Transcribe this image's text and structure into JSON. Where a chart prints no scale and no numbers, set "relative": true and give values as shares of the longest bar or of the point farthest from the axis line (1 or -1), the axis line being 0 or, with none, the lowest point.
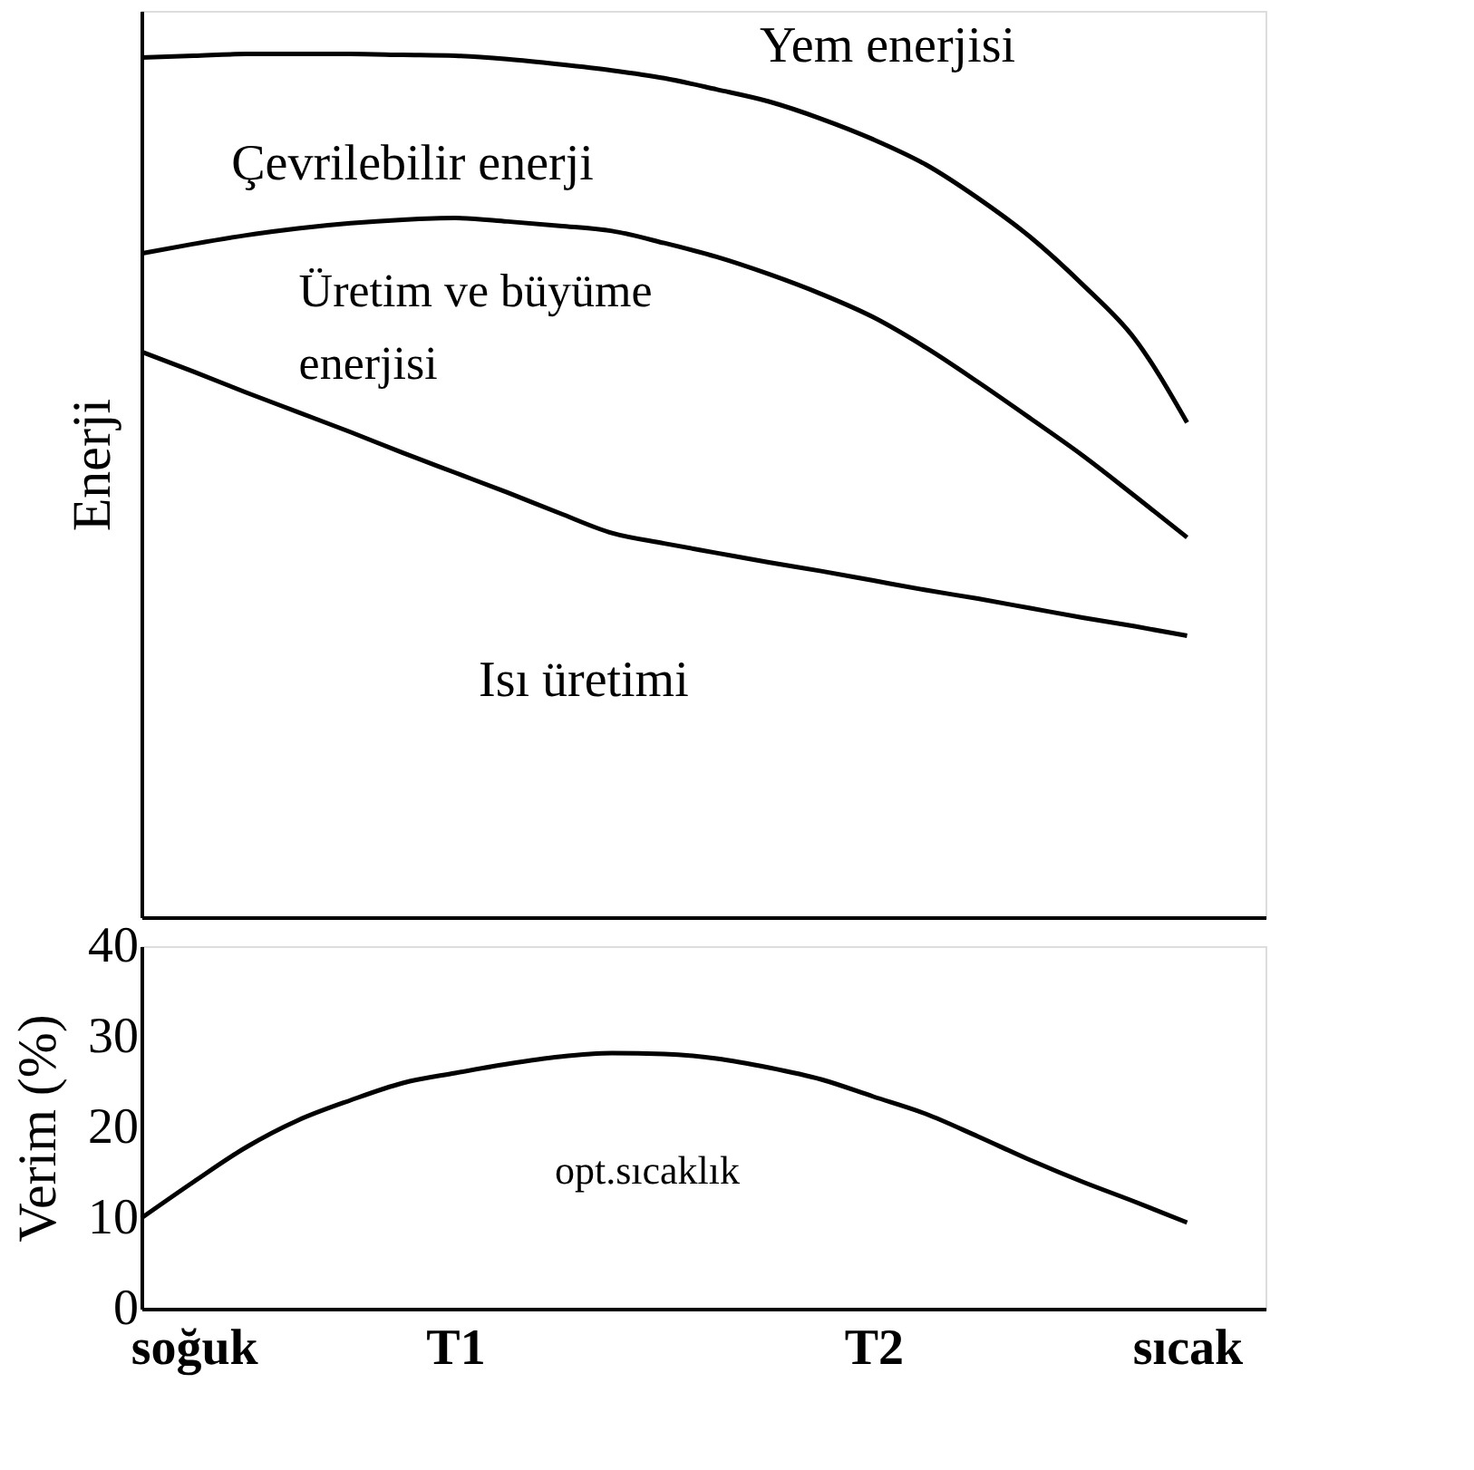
{
  "chart_data": [
    {
      "type": "line",
      "relative": true,
      "ylabel": "Enerji",
      "tick_labels": false,
      "categories": [
        null,
        null,
        null,
        null,
        null,
        null,
        null,
        null,
        null,
        null,
        null,
        null,
        null,
        null,
        null,
        null,
        null,
        null,
        null,
        null,
        null
      ],
      "annotations": [
        "Üretim ve büyüme\nenerjisi"
      ],
      "series": [
        {
          "name": "Yem enerjisi",
          "color": "#000000",
          "values": [
            0.996,
            0.998,
            1.0,
            1.0,
            1.0,
            0.999,
            0.998,
            0.994,
            0.988,
            0.981,
            0.972,
            0.959,
            0.945,
            0.925,
            0.901,
            0.872,
            0.833,
            0.788,
            0.733,
            0.67,
            0.573
          ]
        },
        {
          "name": "Çevrilebilir enerji",
          "color": "#000000",
          "values": [
            0.769,
            0.78,
            0.79,
            0.798,
            0.804,
            0.808,
            0.81,
            0.806,
            0.801,
            0.795,
            0.781,
            0.765,
            0.745,
            0.722,
            0.695,
            0.66,
            0.62,
            0.578,
            0.535,
            0.488,
            0.44
          ]
        },
        {
          "name": "Isı üretimi",
          "color": "#000000",
          "values": [
            0.655,
            0.632,
            0.608,
            0.585,
            0.562,
            0.538,
            0.515,
            0.492,
            0.468,
            0.445,
            0.433,
            0.422,
            0.411,
            0.401,
            0.39,
            0.379,
            0.369,
            0.358,
            0.347,
            0.337,
            0.326
          ]
        }
      ]
    },
    {
      "type": "line",
      "ylabel": "Verim (%)",
      "ylim": [
        0,
        40
      ],
      "yticks": [
        0,
        10,
        20,
        30,
        40
      ],
      "categories": [
        null,
        "soğuk",
        null,
        null,
        null,
        null,
        "T1",
        null,
        null,
        null,
        null,
        null,
        null,
        null,
        "T2",
        null,
        null,
        null,
        null,
        null,
        "sıcak"
      ],
      "annotations": [
        "opt.sıcaklık"
      ],
      "series": [
        {
          "color": "#000000",
          "values": [
            10,
            14,
            17.8,
            20.8,
            23,
            24.9,
            26,
            27,
            27.8,
            28.2,
            28.1,
            27.6,
            26.6,
            25.3,
            23.4,
            21.5,
            19,
            16.4,
            14,
            11.8,
            9.5
          ]
        }
      ]
    }
  ]
}
